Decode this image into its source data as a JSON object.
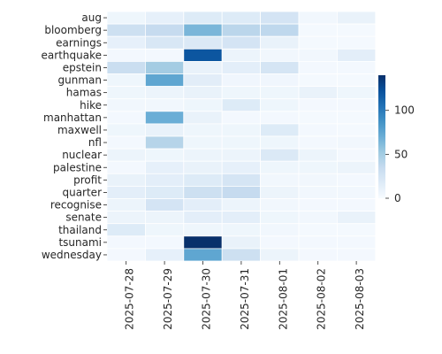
{
  "chart_data": {
    "type": "heatmap",
    "title": "",
    "xlabel": "",
    "ylabel": "",
    "x_categories": [
      "2025-07-28",
      "2025-07-29",
      "2025-07-30",
      "2025-07-31",
      "2025-08-01",
      "2025-08-02",
      "2025-08-03"
    ],
    "y_categories": [
      "aug",
      "bloomberg",
      "earnings",
      "earthquake",
      "epstein",
      "gunman",
      "hamas",
      "hike",
      "manhattan",
      "maxwell",
      "nfl",
      "nuclear",
      "palestine",
      "profit",
      "quarter",
      "recognise",
      "senate",
      "thailand",
      "tsunami",
      "wednesday"
    ],
    "values": [
      [
        6,
        12,
        18,
        18,
        25,
        4,
        10
      ],
      [
        30,
        35,
        65,
        40,
        38,
        2,
        2
      ],
      [
        12,
        22,
        20,
        25,
        10,
        2,
        2
      ],
      [
        3,
        3,
        120,
        8,
        4,
        4,
        14
      ],
      [
        32,
        50,
        10,
        14,
        24,
        3,
        3
      ],
      [
        6,
        75,
        15,
        5,
        5,
        2,
        2
      ],
      [
        6,
        8,
        10,
        6,
        6,
        10,
        6
      ],
      [
        4,
        4,
        6,
        18,
        6,
        3,
        3
      ],
      [
        3,
        70,
        10,
        3,
        3,
        2,
        2
      ],
      [
        6,
        10,
        6,
        6,
        18,
        3,
        2
      ],
      [
        3,
        42,
        6,
        6,
        6,
        3,
        4
      ],
      [
        8,
        6,
        8,
        8,
        20,
        8,
        3
      ],
      [
        3,
        12,
        10,
        12,
        6,
        6,
        8
      ],
      [
        10,
        14,
        18,
        24,
        4,
        4,
        3
      ],
      [
        14,
        18,
        30,
        35,
        8,
        4,
        4
      ],
      [
        8,
        25,
        14,
        8,
        4,
        3,
        3
      ],
      [
        8,
        8,
        14,
        14,
        6,
        4,
        10
      ],
      [
        18,
        6,
        6,
        6,
        4,
        2,
        2
      ],
      [
        3,
        3,
        140,
        10,
        3,
        3,
        3
      ],
      [
        3,
        12,
        75,
        30,
        8,
        3,
        3
      ]
    ],
    "colorbar": {
      "ticks": [
        0,
        50,
        100
      ],
      "vmin": 0,
      "vmax": 140,
      "colormap": "Blues"
    },
    "grid": true
  }
}
